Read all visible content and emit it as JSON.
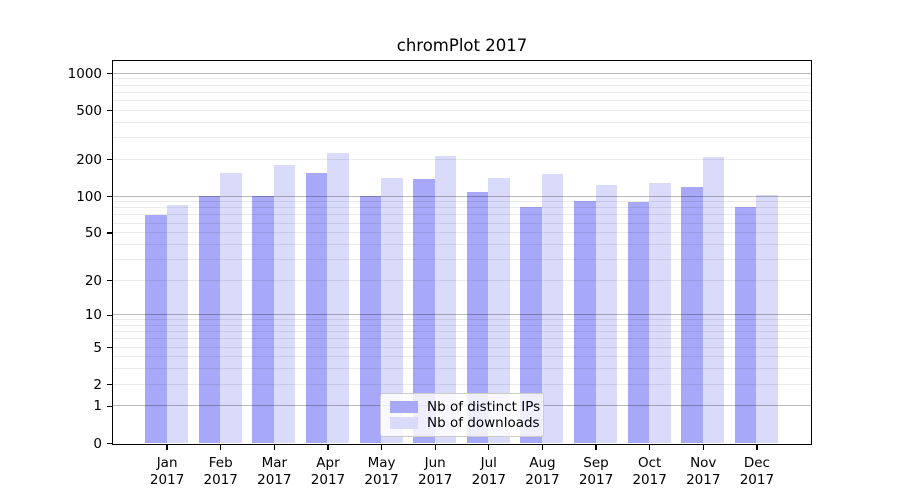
{
  "chart_data": {
    "type": "bar",
    "title": "chromPlot 2017",
    "xlabel": "",
    "ylabel": "",
    "scale": "log1p",
    "ylim": [
      0,
      1258
    ],
    "grid": true,
    "legend_position": "lower center",
    "categories": [
      "Jan",
      "Feb",
      "Mar",
      "Apr",
      "May",
      "Jun",
      "Jul",
      "Aug",
      "Sep",
      "Oct",
      "Nov",
      "Dec"
    ],
    "category_year": "2017",
    "series": [
      {
        "name": "Nb of distinct IPs",
        "color": "#a8a8f8",
        "values": [
          70,
          100,
          100,
          154,
          100,
          139,
          107,
          82,
          91,
          90,
          119,
          82
        ]
      },
      {
        "name": "Nb of downloads",
        "color": "#dadafb",
        "values": [
          85,
          153,
          181,
          226,
          140,
          213,
          140,
          152,
          123,
          129,
          207,
          102
        ]
      }
    ],
    "yticks": [
      1000,
      500,
      200,
      100,
      50,
      20,
      10,
      5,
      2,
      1,
      0
    ],
    "major_gridlines": [
      1,
      10,
      100,
      1000
    ],
    "minor_gridlines": [
      2,
      3,
      4,
      5,
      6,
      7,
      8,
      9,
      20,
      30,
      40,
      50,
      60,
      70,
      80,
      90,
      200,
      300,
      400,
      500,
      600,
      700,
      800,
      900
    ]
  },
  "style": {
    "grid_major_color": "#bababa",
    "grid_minor_color": "#ebebeb",
    "spine_color": "#000000",
    "background": "#ffffff"
  }
}
